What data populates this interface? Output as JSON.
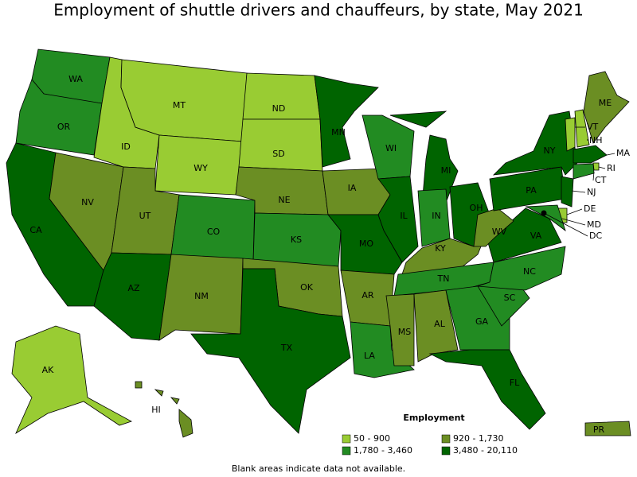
{
  "title": "Employment of shuttle drivers and chauffeurs, by state, May 2021",
  "legend": {
    "title": "Employment",
    "items": [
      {
        "label": "50 - 900",
        "color": "#99cc33"
      },
      {
        "label": "920 - 1,730",
        "color": "#6b8e23"
      },
      {
        "label": "1,780 - 3,460",
        "color": "#228b22"
      },
      {
        "label": "3,480 - 20,110",
        "color": "#006400"
      }
    ]
  },
  "states": [
    {
      "abbr": "WA",
      "color": "#228b22"
    },
    {
      "abbr": "OR",
      "color": "#228b22"
    },
    {
      "abbr": "CA",
      "color": "#006400"
    },
    {
      "abbr": "NV",
      "color": "#6b8e23"
    },
    {
      "abbr": "ID",
      "color": "#99cc33"
    },
    {
      "abbr": "MT",
      "color": "#99cc33"
    },
    {
      "abbr": "WY",
      "color": "#99cc33"
    },
    {
      "abbr": "UT",
      "color": "#6b8e23"
    },
    {
      "abbr": "AZ",
      "color": "#006400"
    },
    {
      "abbr": "CO",
      "color": "#228b22"
    },
    {
      "abbr": "NM",
      "color": "#6b8e23"
    },
    {
      "abbr": "ND",
      "color": "#99cc33"
    },
    {
      "abbr": "SD",
      "color": "#99cc33"
    },
    {
      "abbr": "NE",
      "color": "#6b8e23"
    },
    {
      "abbr": "KS",
      "color": "#228b22"
    },
    {
      "abbr": "OK",
      "color": "#6b8e23"
    },
    {
      "abbr": "TX",
      "color": "#006400"
    },
    {
      "abbr": "MN",
      "color": "#006400"
    },
    {
      "abbr": "IA",
      "color": "#6b8e23"
    },
    {
      "abbr": "MO",
      "color": "#006400"
    },
    {
      "abbr": "AR",
      "color": "#6b8e23"
    },
    {
      "abbr": "LA",
      "color": "#228b22"
    },
    {
      "abbr": "WI",
      "color": "#228b22"
    },
    {
      "abbr": "IL",
      "color": "#006400"
    },
    {
      "abbr": "MI",
      "color": "#006400"
    },
    {
      "abbr": "IN",
      "color": "#228b22"
    },
    {
      "abbr": "OH",
      "color": "#006400"
    },
    {
      "abbr": "KY",
      "color": "#6b8e23"
    },
    {
      "abbr": "TN",
      "color": "#228b22"
    },
    {
      "abbr": "MS",
      "color": "#6b8e23"
    },
    {
      "abbr": "AL",
      "color": "#6b8e23"
    },
    {
      "abbr": "GA",
      "color": "#228b22"
    },
    {
      "abbr": "FL",
      "color": "#006400"
    },
    {
      "abbr": "SC",
      "color": "#228b22"
    },
    {
      "abbr": "NC",
      "color": "#228b22"
    },
    {
      "abbr": "VA",
      "color": "#006400"
    },
    {
      "abbr": "WV",
      "color": "#6b8e23"
    },
    {
      "abbr": "PA",
      "color": "#006400"
    },
    {
      "abbr": "NY",
      "color": "#006400"
    },
    {
      "abbr": "NJ",
      "color": "#006400"
    },
    {
      "abbr": "DE",
      "color": "#99cc33"
    },
    {
      "abbr": "MD",
      "color": "#228b22"
    },
    {
      "abbr": "VT",
      "color": "#99cc33"
    },
    {
      "abbr": "NH",
      "color": "#99cc33"
    },
    {
      "abbr": "ME",
      "color": "#6b8e23"
    },
    {
      "abbr": "MA",
      "color": "#006400"
    },
    {
      "abbr": "RI",
      "color": "#99cc33"
    },
    {
      "abbr": "CT",
      "color": "#228b22"
    },
    {
      "abbr": "AK",
      "color": "#99cc33"
    },
    {
      "abbr": "HI",
      "color": "#6b8e23"
    },
    {
      "abbr": "PR",
      "color": "#6b8e23"
    },
    {
      "abbr": "DC",
      "color": "#000000"
    }
  ],
  "footnote": "Blank areas indicate data not available."
}
